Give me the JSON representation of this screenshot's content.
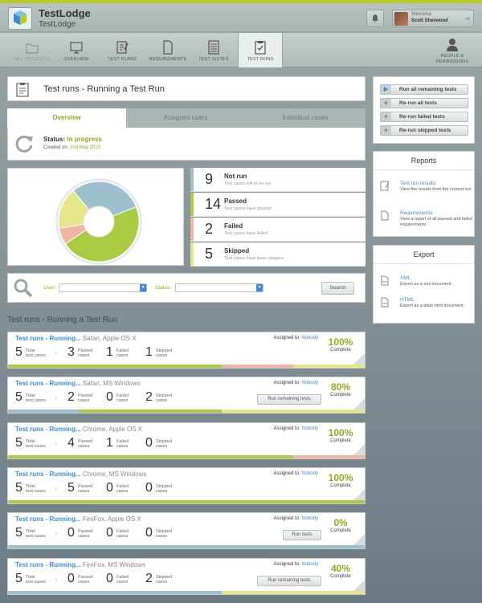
{
  "app": {
    "name": "TestLodge",
    "project": "TestLodge"
  },
  "user": {
    "welcome": "Welcome",
    "name": "Scott Sherwood"
  },
  "nav": [
    {
      "label": "All Projects",
      "icon": "folder-icon"
    },
    {
      "label": "Overview",
      "icon": "monitor-icon"
    },
    {
      "label": "Test Plans",
      "icon": "pencil-doc-icon"
    },
    {
      "label": "Requirements",
      "icon": "doc-icon"
    },
    {
      "label": "Test Suites",
      "icon": "list-doc-icon"
    },
    {
      "label": "Test Runs",
      "icon": "check-doc-icon"
    },
    {
      "label": "People & Permissions",
      "icon": "person-icon"
    }
  ],
  "page": {
    "title": "Test runs - Running a Test Run"
  },
  "tabs": [
    "Overview",
    "Assigned users",
    "Individual cases"
  ],
  "status": {
    "label": "Status:",
    "value": "In progress",
    "created_label": "Created on:",
    "created_date": "2nd May 2015"
  },
  "chart_data": {
    "type": "pie",
    "categories": [
      "Not run",
      "Passed",
      "Failed",
      "Skipped"
    ],
    "values": [
      9,
      14,
      2,
      5
    ],
    "colors": [
      "#9dbfce",
      "#abca43",
      "#f0b4a4",
      "#e4e68a"
    ]
  },
  "stats": [
    {
      "num": "9",
      "label": "Not run",
      "sub": "Test cases still to be run",
      "color": "#9dbfce"
    },
    {
      "num": "14",
      "label": "Passed",
      "sub": "Test cases have passed",
      "color": "#abca43"
    },
    {
      "num": "2",
      "label": "Failed",
      "sub": "Test cases have failed",
      "color": "#f0b4a4"
    },
    {
      "num": "5",
      "label": "Skipped",
      "sub": "Test cases have been skipped",
      "color": "#e4e68a"
    }
  ],
  "filter": {
    "user_label": "User:",
    "status_label": "Status:",
    "search": "Search"
  },
  "section_title": "Test runs - Running a Test Run",
  "runs": [
    {
      "title": "Test runs - Running...",
      "env": "Safari, Apple OS X",
      "assigned_label": "Assigned to:",
      "assigned": "Nobody",
      "total": "5",
      "passed": "3",
      "failed": "1",
      "skipped": "1",
      "pct": "100%",
      "complete": "Complete",
      "button": "",
      "segments": [
        0,
        60,
        20,
        20
      ]
    },
    {
      "title": "Test runs - Running...",
      "env": "Safari, MS Windows",
      "assigned_label": "Assigned to:",
      "assigned": "Nobody",
      "total": "5",
      "passed": "2",
      "failed": "0",
      "skipped": "2",
      "pct": "80%",
      "complete": "Complete",
      "button": "Run remaining tests",
      "segments": [
        20,
        40,
        0,
        40
      ]
    },
    {
      "title": "Test runs - Running...",
      "env": "Chrome, Apple OS X",
      "assigned_label": "Assigned to:",
      "assigned": "Nobody",
      "total": "5",
      "passed": "4",
      "failed": "1",
      "skipped": "0",
      "pct": "100%",
      "complete": "Complete",
      "button": "",
      "segments": [
        0,
        80,
        20,
        0
      ]
    },
    {
      "title": "Test runs - Running...",
      "env": "Chrome, MS Windows",
      "assigned_label": "Assigned to:",
      "assigned": "Nobody",
      "total": "5",
      "passed": "5",
      "failed": "0",
      "skipped": "0",
      "pct": "100%",
      "complete": "Complete",
      "button": "",
      "segments": [
        0,
        100,
        0,
        0
      ]
    },
    {
      "title": "Test runs - Running...",
      "env": "FireFox, Apple OS X",
      "assigned_label": "Assigned to:",
      "assigned": "Nobody",
      "total": "5",
      "passed": "0",
      "failed": "0",
      "skipped": "0",
      "pct": "0%",
      "complete": "Complete",
      "button": "Run tests",
      "segments": [
        100,
        0,
        0,
        0
      ]
    },
    {
      "title": "Test runs - Running...",
      "env": "FireFox, MS Windows",
      "assigned_label": "Assigned to:",
      "assigned": "Nobody",
      "total": "5",
      "passed": "0",
      "failed": "0",
      "skipped": "2",
      "pct": "40%",
      "complete": "Complete",
      "button": "Run remaining tests",
      "segments": [
        60,
        0,
        0,
        40
      ]
    }
  ],
  "labels": {
    "total": "Total\ntest cases",
    "passed": "Passed\ncases",
    "failed": "Failed\ncases",
    "skipped": "Skipped\ncases"
  },
  "side_buttons": [
    "Run all remaining tests",
    "Re-run all tests",
    "Re-run failed tests",
    "Re-run skipped tests"
  ],
  "reports": {
    "title": "Reports",
    "items": [
      {
        "link": "Test run results",
        "desc": "View the results from the current run."
      },
      {
        "link": "Requirements",
        "desc": "View a report of all passed and failed requirements."
      }
    ]
  },
  "export": {
    "title": "Export",
    "items": [
      {
        "link": "XML",
        "desc": "Export as a xml document."
      },
      {
        "link": "HTML",
        "desc": "Export as a plain html document."
      }
    ]
  }
}
